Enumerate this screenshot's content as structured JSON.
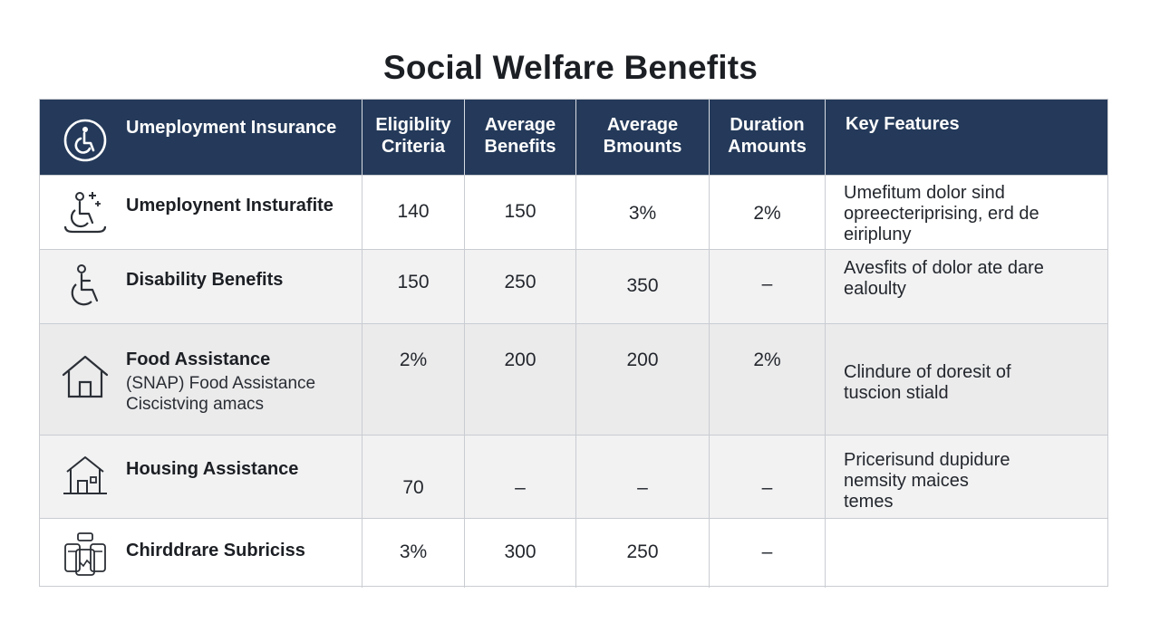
{
  "title": "Social Welfare Benefits",
  "header": {
    "col0": "Umeployment Insurance",
    "col1": "Eligiblity\nCriteria",
    "col2": "Average\nBenefits",
    "col3": "Average\nBmounts",
    "col4": "Duration\nAmounts",
    "col5": "Key Features",
    "icon": "accessibility-circle-icon"
  },
  "rows": [
    {
      "name": "Umeploynent Insturafite",
      "sub": "",
      "icon": "wheelchair-user-icon",
      "c1": "140",
      "c2": "150",
      "c3": "3%",
      "c4": "2%",
      "features": "Umefitum dolor sind\nopreecteriprising, erd de\neiriplunу"
    },
    {
      "name": "Disability Benefits",
      "sub": "",
      "icon": "wheelchair-icon",
      "c1": "150",
      "c2": "250",
      "c3": "350",
      "c4": "–",
      "features": "Avesfits of dolor ate dare\nealoulty"
    },
    {
      "name": "Food Assistance",
      "sub": "(SNAP) Food Assistance\nCiscistving amacs",
      "icon": "house-icon",
      "c1": "2%",
      "c2": "200",
      "c3": "200",
      "c4": "2%",
      "features": "Clindure of doresit of\ntuscion stiald"
    },
    {
      "name": "Housing Assistance",
      "sub": "",
      "icon": "home-building-icon",
      "c1": "70",
      "c2": "–",
      "c3": "–",
      "c4": "–",
      "features": "Pricerisund dupidure\nnemsity maices\ntemes"
    },
    {
      "name": "Chirddrare Subriciss",
      "sub": "",
      "icon": "childcare-bottles-icon",
      "c1": "3%",
      "c2": "300",
      "c3": "250",
      "c4": "–",
      "features": ""
    }
  ]
}
